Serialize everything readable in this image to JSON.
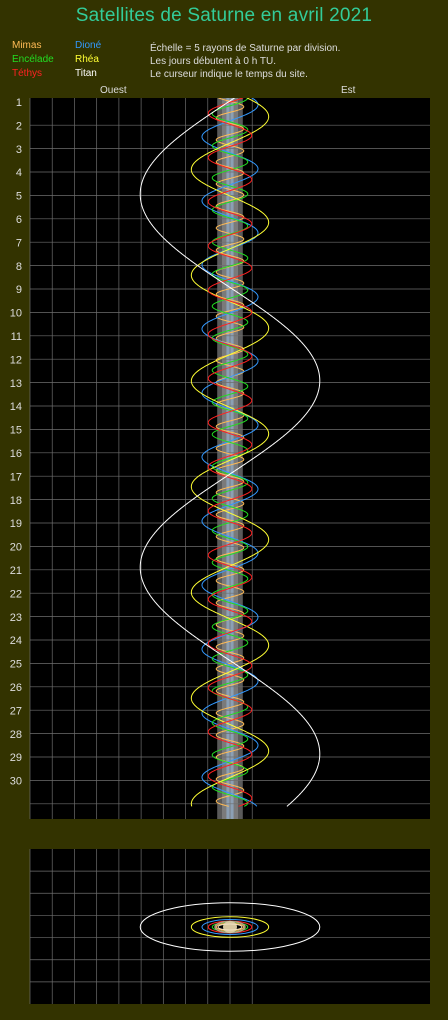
{
  "title": "Satellites de Saturne en avril 2021",
  "notes": [
    "Échelle = 5 rayons de Saturne par division.",
    "Les jours débutent à 0 h TU.",
    "Le curseur indique le temps du site."
  ],
  "directions": {
    "west": "Ouest",
    "east": "Est"
  },
  "colors": {
    "background": "#333300",
    "plot_bg": "#000000",
    "grid": "#6e6e6e",
    "title": "#33cc99",
    "text": "#dddddd",
    "saturn_band": "#7a7a7a"
  },
  "chart_data": [
    {
      "type": "line",
      "title": "Satellites de Saturne en avril 2021",
      "x_unit": "rayons de Saturne",
      "x_per_division": 5,
      "xlim": [
        -45,
        45
      ],
      "ylim": [
        0.5,
        31
      ],
      "days": [
        "1",
        "2",
        "3",
        "4",
        "5",
        "6",
        "7",
        "8",
        "9",
        "10",
        "11",
        "12",
        "13",
        "14",
        "15",
        "16",
        "17",
        "18",
        "19",
        "20",
        "21",
        "22",
        "23",
        "24",
        "25",
        "26",
        "27",
        "28",
        "29",
        "30"
      ],
      "saturn_half_width": 1.8,
      "series": [
        {
          "name": "Mimas",
          "color": "#ffbb55",
          "amplitude": 3.1,
          "period_days": 0.942,
          "phase": 0.2,
          "ring_b": 0.8
        },
        {
          "name": "Dioné",
          "color": "#3399ff",
          "amplitude": 6.3,
          "period_days": 2.737,
          "phase": 1.3,
          "ring_b": 1.6
        },
        {
          "name": "Encélade",
          "color": "#22dd22",
          "amplitude": 4.0,
          "period_days": 1.37,
          "phase": 2.4,
          "ring_b": 1.0
        },
        {
          "name": "Rhéa",
          "color": "#ffff33",
          "amplitude": 8.7,
          "period_days": 4.518,
          "phase": 0.7,
          "ring_b": 2.2
        },
        {
          "name": "Téthys",
          "color": "#ff2222",
          "amplitude": 4.9,
          "period_days": 1.888,
          "phase": 3.1,
          "ring_b": 1.25
        },
        {
          "name": "Titan",
          "color": "#ffffff",
          "amplitude": 20.2,
          "period_days": 15.945,
          "phase": 3.16,
          "ring_b": 5.2
        }
      ]
    }
  ]
}
